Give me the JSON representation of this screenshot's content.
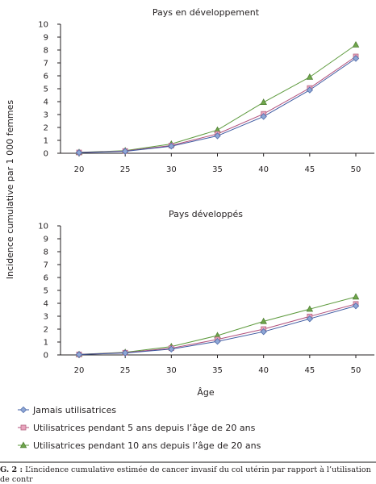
{
  "chart_data": [
    {
      "type": "line",
      "title": "Pays en développement",
      "ylim": [
        0,
        10
      ],
      "yticks": [
        "0",
        "1",
        "2",
        "3",
        "4",
        "5",
        "6",
        "7",
        "8",
        "9",
        "10"
      ],
      "categories": [
        "20",
        "25",
        "30",
        "35",
        "40",
        "45",
        "50"
      ],
      "series": [
        {
          "name": "Jamais utilisatrices",
          "values": [
            0.05,
            0.15,
            0.55,
            1.35,
            2.85,
            4.9,
            7.35
          ]
        },
        {
          "name": "Utilisatrices pendant 5 ans depuis l’âge de 20 ans",
          "values": [
            0.06,
            0.17,
            0.6,
            1.5,
            3.05,
            5.05,
            7.5
          ]
        },
        {
          "name": "Utilisatrices pendant 10 ans depuis l’âge de 20 ans",
          "values": [
            0.07,
            0.2,
            0.72,
            1.8,
            3.95,
            5.9,
            8.4
          ]
        }
      ]
    },
    {
      "type": "line",
      "title": "Pays développés",
      "ylim": [
        0,
        10
      ],
      "yticks": [
        "0",
        "1",
        "2",
        "3",
        "4",
        "5",
        "6",
        "7",
        "8",
        "9",
        "10"
      ],
      "categories": [
        "20",
        "25",
        "30",
        "35",
        "40",
        "45",
        "50"
      ],
      "series": [
        {
          "name": "Jamais utilisatrices",
          "values": [
            0.03,
            0.15,
            0.45,
            1.05,
            1.8,
            2.8,
            3.8
          ]
        },
        {
          "name": "Utilisatrices pendant 5 ans depuis l’âge de 20 ans",
          "values": [
            0.04,
            0.17,
            0.52,
            1.2,
            2.0,
            2.98,
            3.95
          ]
        },
        {
          "name": "Utilisatrices pendant 10 ans depuis l’âge de 20 ans",
          "values": [
            0.05,
            0.2,
            0.65,
            1.5,
            2.6,
            3.55,
            4.5
          ]
        }
      ]
    }
  ],
  "shared": {
    "ylabel": "Incidence cumulative par 1 000 femmes",
    "xlabel": "Âge"
  },
  "legend": [
    {
      "label": "Jamais utilisatrices",
      "marker": "diamond",
      "fill": "#8fa7d6",
      "stroke": "#4d6aa8"
    },
    {
      "label": "Utilisatrices pendant 5 ans depuis l’âge de 20 ans",
      "marker": "square",
      "fill": "#e9a4bd",
      "stroke": "#b56783"
    },
    {
      "label": "Utilisatrices pendant 10 ans depuis l’âge de 20 ans",
      "marker": "triangle",
      "fill": "#6fa64b",
      "stroke": "#4f7f33"
    }
  ],
  "colors": {
    "axis": "#231f20",
    "series_lines": [
      "#3d58a0",
      "#b04f7b",
      "#5d9a3d"
    ]
  },
  "caption": {
    "label": "G. 2 :",
    "text": " L’incidence cumulative estimée de cancer invasif du col utérin par rapport à l’utilisation de contr\nptifs oraux combinés."
  }
}
